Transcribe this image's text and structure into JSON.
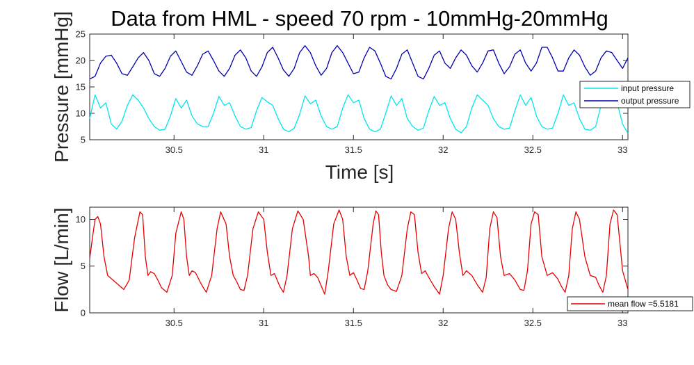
{
  "chart_data": [
    {
      "type": "line",
      "title": "Data from HML - speed 70 rpm - 10mmHg-20mmHg",
      "xlabel": "Time [s]",
      "ylabel": "Pressure [mmHg]",
      "xlim": [
        30.03,
        33.03
      ],
      "ylim": [
        5,
        25
      ],
      "xticks": [
        30.5,
        31,
        31.5,
        32,
        32.5,
        33
      ],
      "xtick_labels": [
        "30.5",
        "31",
        "31.5",
        "32",
        "32.5",
        "33"
      ],
      "yticks": [
        5,
        10,
        15,
        20,
        25
      ],
      "ytick_labels": [
        "5",
        "10",
        "15",
        "20",
        "25"
      ],
      "grid": false,
      "legend_position": "right",
      "series": [
        {
          "name": "input pressure",
          "color": "#00e5ee",
          "x": [
            30.03,
            30.06,
            30.09,
            30.12,
            30.15,
            30.18,
            30.21,
            30.24,
            30.27,
            30.3,
            30.33,
            30.36,
            30.39,
            30.42,
            30.45,
            30.48,
            30.51,
            30.54,
            30.57,
            30.6,
            30.63,
            30.66,
            30.69,
            30.72,
            30.75,
            30.78,
            30.81,
            30.84,
            30.87,
            30.9,
            30.93,
            30.96,
            30.99,
            31.02,
            31.05,
            31.08,
            31.11,
            31.14,
            31.17,
            31.2,
            31.23,
            31.26,
            31.29,
            31.32,
            31.35,
            31.38,
            31.41,
            31.44,
            31.47,
            31.5,
            31.53,
            31.56,
            31.59,
            31.62,
            31.65,
            31.68,
            31.71,
            31.74,
            31.77,
            31.8,
            31.83,
            31.86,
            31.89,
            31.92,
            31.95,
            31.98,
            32.01,
            32.04,
            32.07,
            32.1,
            32.13,
            32.16,
            32.19,
            32.22,
            32.25,
            32.28,
            32.31,
            32.34,
            32.37,
            32.4,
            32.43,
            32.46,
            32.49,
            32.52,
            32.55,
            32.58,
            32.61,
            32.64,
            32.67,
            32.7,
            32.73,
            32.76,
            32.79,
            32.82,
            32.85,
            32.88,
            32.91,
            32.94,
            32.97,
            33.0,
            33.03
          ],
          "y": [
            9.0,
            13.5,
            11.0,
            12.0,
            8.0,
            7.0,
            8.5,
            11.5,
            13.5,
            12.5,
            11.0,
            9.0,
            7.5,
            6.8,
            7.0,
            9.5,
            12.8,
            11.0,
            12.5,
            9.5,
            8.0,
            7.5,
            7.5,
            10.0,
            13.2,
            11.5,
            12.0,
            9.5,
            7.5,
            7.0,
            7.3,
            10.5,
            13.0,
            12.2,
            11.5,
            9.0,
            7.0,
            6.5,
            7.2,
            9.8,
            13.3,
            11.8,
            12.5,
            9.5,
            7.5,
            7.0,
            7.5,
            11.0,
            13.5,
            12.0,
            12.5,
            9.0,
            7.0,
            6.5,
            7.0,
            10.0,
            13.3,
            11.5,
            12.8,
            9.0,
            7.5,
            6.8,
            7.2,
            10.5,
            13.2,
            11.5,
            12.0,
            9.0,
            7.0,
            6.3,
            7.5,
            11.0,
            13.5,
            12.5,
            11.5,
            9.0,
            7.5,
            7.0,
            7.2,
            10.5,
            13.5,
            11.5,
            13.0,
            9.5,
            7.5,
            7.0,
            7.2,
            10.0,
            13.5,
            11.5,
            12.0,
            9.0,
            7.0,
            6.8,
            7.5,
            11.5,
            13.5,
            11.0,
            12.0,
            8.0,
            6.2
          ]
        },
        {
          "name": "output pressure",
          "color": "#0000ad",
          "x": [
            30.03,
            30.06,
            30.09,
            30.12,
            30.15,
            30.18,
            30.21,
            30.24,
            30.27,
            30.3,
            30.33,
            30.36,
            30.39,
            30.42,
            30.45,
            30.48,
            30.51,
            30.54,
            30.57,
            30.6,
            30.63,
            30.66,
            30.69,
            30.72,
            30.75,
            30.78,
            30.81,
            30.84,
            30.87,
            30.9,
            30.93,
            30.96,
            30.99,
            31.02,
            31.05,
            31.08,
            31.11,
            31.14,
            31.17,
            31.2,
            31.23,
            31.26,
            31.29,
            31.32,
            31.35,
            31.38,
            31.41,
            31.44,
            31.47,
            31.5,
            31.53,
            31.56,
            31.59,
            31.62,
            31.65,
            31.68,
            31.71,
            31.74,
            31.77,
            31.8,
            31.83,
            31.86,
            31.89,
            31.92,
            31.95,
            31.98,
            32.01,
            32.04,
            32.07,
            32.1,
            32.13,
            32.16,
            32.19,
            32.22,
            32.25,
            32.28,
            32.31,
            32.34,
            32.37,
            32.4,
            32.43,
            32.46,
            32.49,
            32.52,
            32.55,
            32.58,
            32.61,
            32.64,
            32.67,
            32.7,
            32.73,
            32.76,
            32.79,
            32.82,
            32.85,
            32.88,
            32.91,
            32.94,
            32.97,
            33.0,
            33.03
          ],
          "y": [
            16.5,
            17.0,
            19.5,
            20.8,
            21.0,
            19.5,
            17.5,
            17.2,
            18.8,
            20.5,
            21.5,
            20.0,
            17.5,
            17.0,
            18.5,
            20.8,
            21.8,
            19.8,
            17.8,
            17.2,
            19.0,
            21.2,
            21.8,
            20.0,
            18.0,
            17.0,
            18.5,
            21.0,
            22.0,
            20.5,
            18.0,
            17.0,
            18.8,
            21.5,
            22.5,
            20.5,
            18.2,
            17.0,
            18.5,
            21.5,
            22.8,
            21.5,
            19.0,
            17.2,
            18.5,
            21.5,
            22.8,
            21.5,
            19.5,
            17.5,
            17.8,
            20.5,
            22.5,
            21.8,
            19.5,
            17.0,
            16.5,
            18.5,
            21.2,
            22.0,
            19.5,
            17.0,
            16.5,
            18.5,
            21.0,
            21.8,
            19.5,
            18.5,
            20.5,
            22.0,
            21.0,
            19.0,
            17.8,
            19.5,
            21.8,
            22.0,
            19.5,
            17.5,
            18.8,
            21.2,
            22.0,
            19.5,
            18.0,
            19.5,
            22.5,
            22.5,
            20.5,
            18.0,
            18.0,
            20.5,
            22.0,
            21.0,
            18.8,
            17.2,
            18.0,
            20.5,
            21.8,
            21.5,
            20.0,
            18.5,
            20.5
          ]
        }
      ]
    },
    {
      "type": "line",
      "title": "",
      "xlabel": "",
      "ylabel": "Flow [L/min]",
      "xlim": [
        30.03,
        33.03
      ],
      "ylim": [
        0,
        11.3
      ],
      "xticks": [
        30.5,
        31,
        31.5,
        32,
        32.5,
        33
      ],
      "xtick_labels": [
        "30.5",
        "31",
        "31.5",
        "32",
        "32.5",
        "33"
      ],
      "yticks": [
        0,
        5,
        10
      ],
      "ytick_labels": [
        "0",
        "5",
        "10"
      ],
      "grid": false,
      "legend_position": "bottom-right",
      "series": [
        {
          "name": "mean flow =5.5181",
          "color": "#e60000",
          "x": [
            30.03,
            30.045,
            30.06,
            30.075,
            30.09,
            30.11,
            30.13,
            30.16,
            30.19,
            30.22,
            30.25,
            30.28,
            30.31,
            30.325,
            30.34,
            30.355,
            30.37,
            30.39,
            30.41,
            30.43,
            30.46,
            30.49,
            30.51,
            30.54,
            30.555,
            30.57,
            30.585,
            30.6,
            30.62,
            30.64,
            30.66,
            30.68,
            30.71,
            30.74,
            30.76,
            30.79,
            30.81,
            30.83,
            30.85,
            30.87,
            30.89,
            30.91,
            30.94,
            30.97,
            31.0,
            31.02,
            31.04,
            31.06,
            31.075,
            31.09,
            31.11,
            31.13,
            31.16,
            31.19,
            31.22,
            31.25,
            31.26,
            31.28,
            31.3,
            31.32,
            31.34,
            31.36,
            31.39,
            31.42,
            31.44,
            31.46,
            31.48,
            31.5,
            31.52,
            31.54,
            31.56,
            31.58,
            31.61,
            31.625,
            31.64,
            31.655,
            31.67,
            31.69,
            31.71,
            31.74,
            31.77,
            31.8,
            31.82,
            31.84,
            31.86,
            31.88,
            31.9,
            31.92,
            31.95,
            31.98,
            32.0,
            32.03,
            32.05,
            32.07,
            32.09,
            32.11,
            32.13,
            32.16,
            32.19,
            32.22,
            32.24,
            32.26,
            32.28,
            32.3,
            32.32,
            32.34,
            32.37,
            32.4,
            32.43,
            32.45,
            32.47,
            32.49,
            32.51,
            32.53,
            32.55,
            32.58,
            32.61,
            32.64,
            32.66,
            32.68,
            32.7,
            32.72,
            32.74,
            32.76,
            32.79,
            32.82,
            32.85,
            32.87,
            32.89,
            32.91,
            32.93,
            32.95,
            32.97,
            33.0,
            33.03
          ],
          "y": [
            5.8,
            8.0,
            10.0,
            10.3,
            9.5,
            6.0,
            4.0,
            3.5,
            3.0,
            2.5,
            3.5,
            8.0,
            10.8,
            10.5,
            6.0,
            4.0,
            4.4,
            4.2,
            3.5,
            2.7,
            2.2,
            4.0,
            8.5,
            10.8,
            10.0,
            6.0,
            4.0,
            4.5,
            4.3,
            3.5,
            2.8,
            2.2,
            4.0,
            9.0,
            10.8,
            9.5,
            6.0,
            4.0,
            3.3,
            2.5,
            2.4,
            4.0,
            9.0,
            10.8,
            10.0,
            6.5,
            4.0,
            4.2,
            3.5,
            2.8,
            2.2,
            4.0,
            9.0,
            10.9,
            10.0,
            6.0,
            4.0,
            4.2,
            3.8,
            2.9,
            2.0,
            4.5,
            9.5,
            11.0,
            10.0,
            6.0,
            4.0,
            4.3,
            3.5,
            2.6,
            2.5,
            4.5,
            9.5,
            10.9,
            10.5,
            6.5,
            4.0,
            3.0,
            2.5,
            2.3,
            4.0,
            9.0,
            10.8,
            10.5,
            6.5,
            4.2,
            4.5,
            3.8,
            2.8,
            2.0,
            4.0,
            9.0,
            10.8,
            10.0,
            6.5,
            4.0,
            4.5,
            4.0,
            3.0,
            2.2,
            3.8,
            9.0,
            10.8,
            10.2,
            6.0,
            4.0,
            4.2,
            3.5,
            2.5,
            2.4,
            4.5,
            9.5,
            10.8,
            10.5,
            6.0,
            4.0,
            4.3,
            3.6,
            2.8,
            2.2,
            4.0,
            9.0,
            10.8,
            10.0,
            6.0,
            4.0,
            3.8,
            2.9,
            2.2,
            4.0,
            9.5,
            11.0,
            10.5,
            4.5,
            2.5
          ]
        }
      ]
    }
  ]
}
